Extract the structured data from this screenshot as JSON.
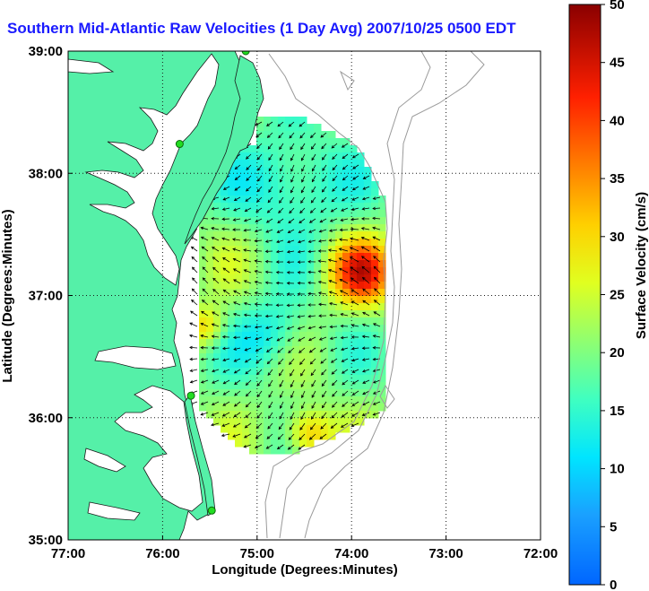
{
  "title": "Southern Mid-Atlantic Raw Velocities (1 Day Avg) 2007/10/25 0500 EDT",
  "map": {
    "xlabel": "Longitude (Degrees:Minutes)",
    "ylabel": "Latitude (Degrees:Minutes)",
    "lon_range": [
      -77,
      -72
    ],
    "lat_range": [
      35,
      39
    ],
    "x_ticks": [
      "77:00",
      "76:00",
      "75:00",
      "74:00",
      "73:00",
      "72:00"
    ],
    "y_ticks": [
      "35:00",
      "36:00",
      "37:00",
      "38:00",
      "39:00"
    ],
    "grid": "dotted",
    "land_color": "#55f0a8",
    "contour_color": "#9a9a9a",
    "station_color": "#22dd22",
    "stations": [
      {
        "lon": -75.12,
        "lat": 39.0
      },
      {
        "lon": -75.82,
        "lat": 38.24
      },
      {
        "lon": -75.7,
        "lat": 36.18
      },
      {
        "lon": -75.48,
        "lat": 35.24
      }
    ]
  },
  "colorbar": {
    "label": "Surface Velocity (cm/s)",
    "min": 0,
    "max": 50,
    "ticks": [
      "0",
      "5",
      "10",
      "15",
      "20",
      "25",
      "30",
      "35",
      "40",
      "45",
      "50"
    ]
  }
}
